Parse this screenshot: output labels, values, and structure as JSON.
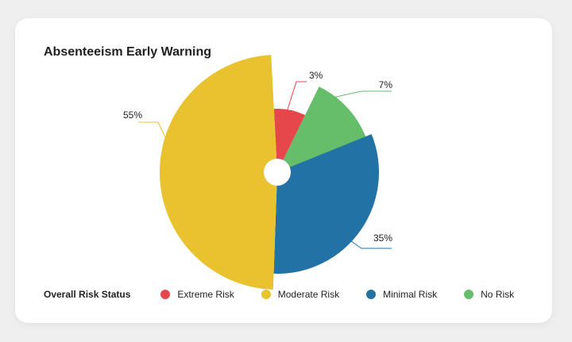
{
  "card": {
    "title": "Absenteeism Early Warning"
  },
  "legend": {
    "title": "Overall Risk Status",
    "items": [
      {
        "label": "Extreme Risk",
        "color": "#e5474b"
      },
      {
        "label": "Moderate Risk",
        "color": "#e9c22f"
      },
      {
        "label": "Minimal Risk",
        "color": "#2372a6"
      },
      {
        "label": "No Risk",
        "color": "#66bd6a"
      }
    ]
  },
  "chart_data": {
    "type": "pie",
    "variant": "donut-radial",
    "title": "Absenteeism Early Warning",
    "categories": [
      "Extreme Risk",
      "No Risk",
      "Minimal Risk",
      "Moderate Risk"
    ],
    "values": [
      3,
      7,
      35,
      55
    ],
    "data_labels": [
      "3%",
      "7%",
      "35%",
      "55%"
    ],
    "colors": [
      "#e5474b",
      "#66bd6a",
      "#2372a6",
      "#e9c22f"
    ]
  }
}
